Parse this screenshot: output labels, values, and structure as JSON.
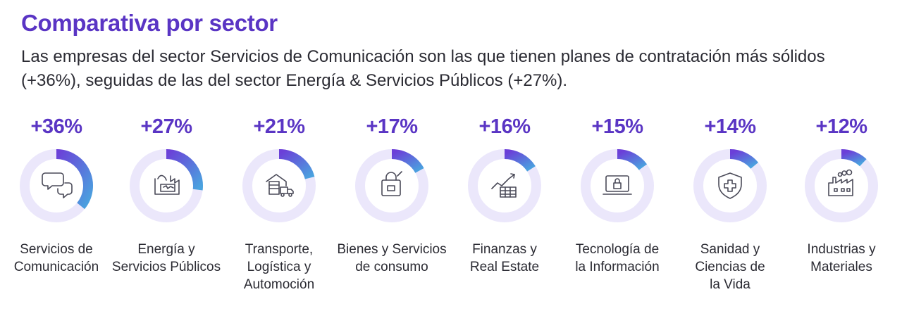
{
  "title": "Comparativa por sector",
  "subtitle": "Las empresas del sector Servicios de Comunicación son las que tienen planes de contratación más sólidos (+36%), seguidas de las del sector Energía & Servicios Públicos (+27%).",
  "colors": {
    "accent": "#5a35c4",
    "ring_track": "#ebe7fb",
    "ring_start": "#6b3fd8",
    "ring_end": "#4aa3df"
  },
  "chart_data": {
    "type": "pie",
    "categories": [
      "Servicios de\nComunicación",
      "Energía y\nServicios Públicos",
      "Transporte,\nLogística y\nAutomoción",
      "Bienes y Servicios\nde consumo",
      "Finanzas y\nReal Estate",
      "Tecnología de\nla Información",
      "Sanidad y\nCiencias de\nla Vida",
      "Industrias y\nMateriales"
    ],
    "values": [
      36,
      27,
      21,
      17,
      16,
      15,
      14,
      12
    ],
    "value_labels": [
      "+36%",
      "+27%",
      "+21%",
      "+17%",
      "+16%",
      "+15%",
      "+14%",
      "+12%"
    ],
    "icons": [
      "chat-bubbles-icon",
      "energy-factory-icon",
      "warehouse-truck-icon",
      "shopping-bag-icon",
      "finance-chart-icon",
      "laptop-lock-icon",
      "shield-cross-icon",
      "factory-icon"
    ]
  }
}
